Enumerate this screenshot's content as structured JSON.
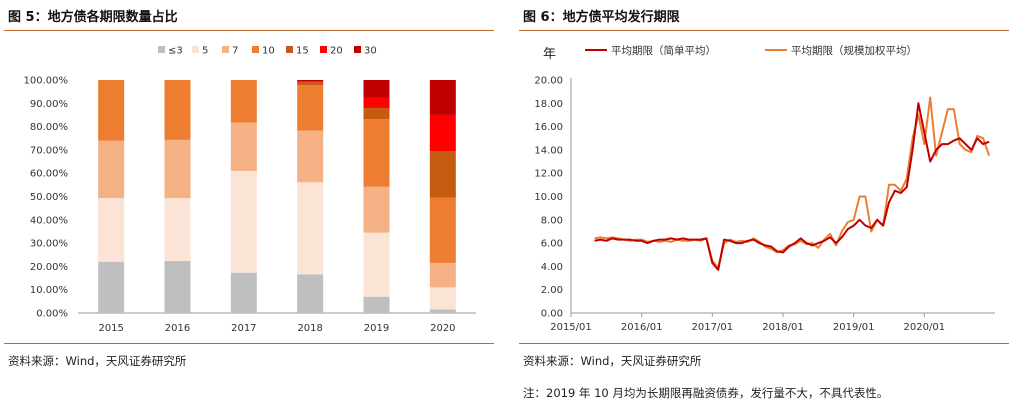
{
  "left_panel": {
    "title": "图 5：地方债各期限数量占比",
    "source": "资料来源：Wind，天风证券研究所"
  },
  "right_panel": {
    "title": "图 6：地方债平均发行期限",
    "source": "资料来源：Wind，天风证券研究所",
    "note": "注：2019 年 10 月均为长期限再融资债券，发行量不大，不具代表性。"
  },
  "chart_data": [
    {
      "type": "bar",
      "stacked": true,
      "categories": [
        "2015",
        "2016",
        "2017",
        "2018",
        "2019",
        "2020"
      ],
      "series": [
        {
          "name": "≤3",
          "color": "#bfbfbf",
          "values": [
            22,
            22.3,
            17.3,
            16.6,
            7,
            1.5
          ]
        },
        {
          "name": "5",
          "color": "#fbe3d6",
          "values": [
            27.3,
            27,
            43.7,
            39.5,
            27.5,
            9.5
          ]
        },
        {
          "name": "7",
          "color": "#f4b183",
          "values": [
            24.7,
            25,
            20.7,
            22.2,
            19.7,
            10.5
          ]
        },
        {
          "name": "10",
          "color": "#ed7d31",
          "values": [
            26,
            25.7,
            18.3,
            19.5,
            29,
            28
          ]
        },
        {
          "name": "15",
          "color": "#c55a11",
          "values": [
            0,
            0,
            0,
            1.2,
            4.8,
            20
          ]
        },
        {
          "name": "20",
          "color": "#ff0000",
          "values": [
            0,
            0,
            0,
            0.5,
            4.5,
            15.5
          ]
        },
        {
          "name": "30",
          "color": "#c00000",
          "values": [
            0,
            0,
            0,
            0.5,
            7.5,
            15
          ]
        }
      ],
      "y_ticks": [
        "0.00%",
        "10.00%",
        "20.00%",
        "30.00%",
        "40.00%",
        "50.00%",
        "60.00%",
        "70.00%",
        "80.00%",
        "90.00%",
        "100.00%"
      ],
      "ylim": [
        0,
        100
      ],
      "legend_position": "top"
    },
    {
      "type": "line",
      "ylabel": "年",
      "ylim": [
        0,
        20
      ],
      "y_ticks": [
        "0.00",
        "2.00",
        "4.00",
        "6.00",
        "8.00",
        "10.00",
        "12.00",
        "14.00",
        "16.00",
        "18.00",
        "20.00"
      ],
      "x_ticks": [
        {
          "label": "2015/01",
          "value": "2015-01"
        },
        {
          "label": "2016/01",
          "value": "2016-01"
        },
        {
          "label": "2017/01",
          "value": "2017-01"
        },
        {
          "label": "2018/01",
          "value": "2018-01"
        },
        {
          "label": "2019/01",
          "value": "2019-01"
        },
        {
          "label": "2020/01",
          "value": "2020-01"
        }
      ],
      "x_range": [
        "2015-01",
        "2021-01"
      ],
      "legend_position": "top",
      "series": [
        {
          "name": "平均期限（简单平均）",
          "color": "#c00000",
          "points": [
            [
              "2015-05",
              6.2
            ],
            [
              "2015-06",
              6.3
            ],
            [
              "2015-07",
              6.2
            ],
            [
              "2015-08",
              6.4
            ],
            [
              "2015-09",
              6.3
            ],
            [
              "2015-10",
              6.3
            ],
            [
              "2015-11",
              6.3
            ],
            [
              "2015-12",
              6.2
            ],
            [
              "2016-01",
              6.2
            ],
            [
              "2016-02",
              6.0
            ],
            [
              "2016-03",
              6.2
            ],
            [
              "2016-04",
              6.3
            ],
            [
              "2016-05",
              6.3
            ],
            [
              "2016-06",
              6.4
            ],
            [
              "2016-07",
              6.3
            ],
            [
              "2016-08",
              6.4
            ],
            [
              "2016-09",
              6.3
            ],
            [
              "2016-10",
              6.3
            ],
            [
              "2016-11",
              6.3
            ],
            [
              "2016-12",
              6.4
            ],
            [
              "2017-01",
              4.3
            ],
            [
              "2017-02",
              3.7
            ],
            [
              "2017-03",
              6.3
            ],
            [
              "2017-04",
              6.2
            ],
            [
              "2017-05",
              6.0
            ],
            [
              "2017-06",
              6.0
            ],
            [
              "2017-07",
              6.2
            ],
            [
              "2017-08",
              6.3
            ],
            [
              "2017-09",
              6.0
            ],
            [
              "2017-10",
              5.8
            ],
            [
              "2017-11",
              5.7
            ],
            [
              "2017-12",
              5.3
            ],
            [
              "2018-01",
              5.2
            ],
            [
              "2018-02",
              5.7
            ],
            [
              "2018-03",
              6.0
            ],
            [
              "2018-04",
              6.4
            ],
            [
              "2018-05",
              6.0
            ],
            [
              "2018-06",
              5.8
            ],
            [
              "2018-07",
              6.0
            ],
            [
              "2018-08",
              6.2
            ],
            [
              "2018-09",
              6.5
            ],
            [
              "2018-10",
              6.0
            ],
            [
              "2018-11",
              6.5
            ],
            [
              "2018-12",
              7.2
            ],
            [
              "2019-01",
              7.5
            ],
            [
              "2019-02",
              8.0
            ],
            [
              "2019-03",
              7.5
            ],
            [
              "2019-04",
              7.3
            ],
            [
              "2019-05",
              8.0
            ],
            [
              "2019-06",
              7.5
            ],
            [
              "2019-07",
              9.5
            ],
            [
              "2019-08",
              10.5
            ],
            [
              "2019-09",
              10.3
            ],
            [
              "2019-10",
              10.8
            ],
            [
              "2019-11",
              14.0
            ],
            [
              "2019-12",
              18.0
            ],
            [
              "2020-01",
              15.5
            ],
            [
              "2020-02",
              13.0
            ],
            [
              "2020-03",
              14.0
            ],
            [
              "2020-04",
              14.5
            ],
            [
              "2020-05",
              14.5
            ],
            [
              "2020-06",
              14.8
            ],
            [
              "2020-07",
              15.0
            ],
            [
              "2020-08",
              14.5
            ],
            [
              "2020-09",
              14.0
            ],
            [
              "2020-10",
              15.0
            ],
            [
              "2020-11",
              14.5
            ],
            [
              "2020-12",
              14.7
            ]
          ]
        },
        {
          "name": "平均期限（规模加权平均）",
          "color": "#ed7d31",
          "points": [
            [
              "2015-05",
              6.4
            ],
            [
              "2015-06",
              6.5
            ],
            [
              "2015-07",
              6.4
            ],
            [
              "2015-08",
              6.5
            ],
            [
              "2015-09",
              6.4
            ],
            [
              "2015-10",
              6.3
            ],
            [
              "2015-11",
              6.2
            ],
            [
              "2015-12",
              6.3
            ],
            [
              "2016-01",
              6.3
            ],
            [
              "2016-02",
              6.1
            ],
            [
              "2016-03",
              6.2
            ],
            [
              "2016-04",
              6.1
            ],
            [
              "2016-05",
              6.2
            ],
            [
              "2016-06",
              6.1
            ],
            [
              "2016-07",
              6.3
            ],
            [
              "2016-08",
              6.2
            ],
            [
              "2016-09",
              6.2
            ],
            [
              "2016-10",
              6.3
            ],
            [
              "2016-11",
              6.2
            ],
            [
              "2016-12",
              6.4
            ],
            [
              "2017-01",
              4.5
            ],
            [
              "2017-02",
              3.9
            ],
            [
              "2017-03",
              6.0
            ],
            [
              "2017-04",
              6.3
            ],
            [
              "2017-05",
              6.1
            ],
            [
              "2017-06",
              6.2
            ],
            [
              "2017-07",
              6.1
            ],
            [
              "2017-08",
              6.4
            ],
            [
              "2017-09",
              6.1
            ],
            [
              "2017-10",
              5.7
            ],
            [
              "2017-11",
              5.5
            ],
            [
              "2017-12",
              5.2
            ],
            [
              "2018-01",
              5.4
            ],
            [
              "2018-02",
              5.8
            ],
            [
              "2018-03",
              5.9
            ],
            [
              "2018-04",
              6.2
            ],
            [
              "2018-05",
              5.9
            ],
            [
              "2018-06",
              6.0
            ],
            [
              "2018-07",
              5.6
            ],
            [
              "2018-08",
              6.3
            ],
            [
              "2018-09",
              6.8
            ],
            [
              "2018-10",
              5.8
            ],
            [
              "2018-11",
              7.0
            ],
            [
              "2018-12",
              7.8
            ],
            [
              "2019-01",
              8.0
            ],
            [
              "2019-02",
              10.0
            ],
            [
              "2019-03",
              10.0
            ],
            [
              "2019-04",
              7.0
            ],
            [
              "2019-05",
              8.0
            ],
            [
              "2019-06",
              7.5
            ],
            [
              "2019-07",
              11.0
            ],
            [
              "2019-08",
              11.0
            ],
            [
              "2019-09",
              10.5
            ],
            [
              "2019-10",
              11.5
            ],
            [
              "2019-11",
              15.0
            ],
            [
              "2019-12",
              17.0
            ],
            [
              "2020-01",
              14.5
            ],
            [
              "2020-02",
              18.5
            ],
            [
              "2020-03",
              13.5
            ],
            [
              "2020-04",
              15.5
            ],
            [
              "2020-05",
              17.5
            ],
            [
              "2020-06",
              17.5
            ],
            [
              "2020-07",
              14.5
            ],
            [
              "2020-08",
              14.0
            ],
            [
              "2020-09",
              13.8
            ],
            [
              "2020-10",
              15.2
            ],
            [
              "2020-11",
              15.0
            ],
            [
              "2020-12",
              13.5
            ]
          ]
        }
      ]
    }
  ]
}
